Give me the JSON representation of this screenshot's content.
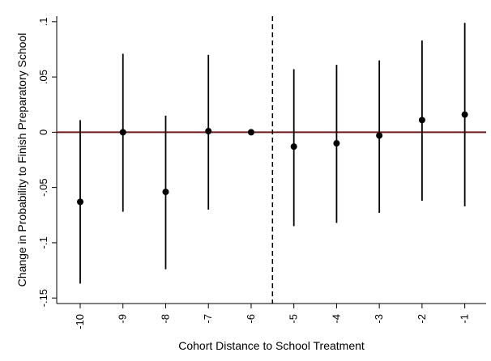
{
  "chart_data": {
    "type": "scatter",
    "title": "",
    "xlabel": "Cohort Distance to School Treatment",
    "ylabel": "Change in Probability to Finish Preparatory School",
    "x": [
      -10,
      -9,
      -8,
      -7,
      -6,
      -5,
      -4,
      -3,
      -2,
      -1
    ],
    "y": [
      -0.063,
      0.0,
      -0.054,
      0.001,
      0.0,
      -0.013,
      -0.01,
      -0.003,
      0.011,
      0.016
    ],
    "ci_lower": [
      -0.137,
      -0.072,
      -0.124,
      -0.07,
      0.0,
      -0.085,
      -0.082,
      -0.073,
      -0.062,
      -0.067
    ],
    "ci_upper": [
      0.011,
      0.071,
      0.015,
      0.07,
      0.0,
      0.057,
      0.061,
      0.065,
      0.083,
      0.099
    ],
    "x_ticks": [
      "-10",
      "-9",
      "-8",
      "-7",
      "-6",
      "-5",
      "-4",
      "-3",
      "-2",
      "-1"
    ],
    "y_ticks": [
      {
        "value": 0.1,
        "label": ".1"
      },
      {
        "value": 0.05,
        "label": ".05"
      },
      {
        "value": 0.0,
        "label": "0"
      },
      {
        "value": -0.05,
        "label": "-.05"
      },
      {
        "value": -0.1,
        "label": "-.1"
      },
      {
        "value": -0.15,
        "label": "-.15"
      }
    ],
    "xlim": [
      -10.55,
      -0.5
    ],
    "ylim": [
      -0.155,
      0.105
    ],
    "zero_line": 0,
    "vline_x": -5.5,
    "grid": false,
    "colors": {
      "points": "#000000",
      "zero_line": "#6e1c1c",
      "vline": "#000000",
      "axis": "#000000"
    }
  }
}
